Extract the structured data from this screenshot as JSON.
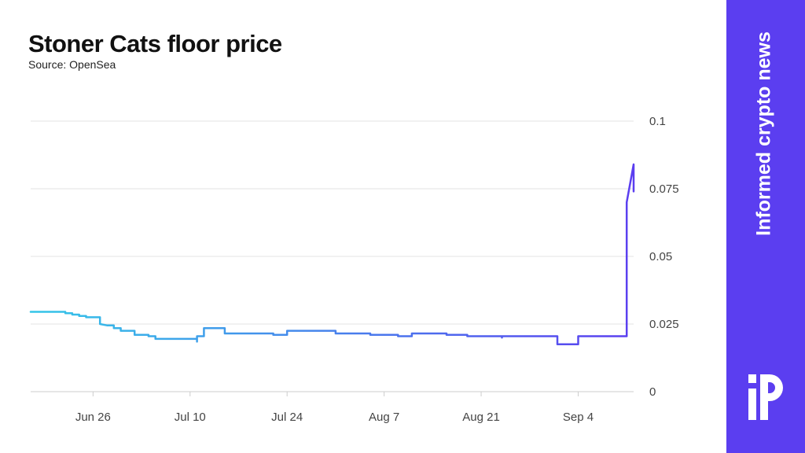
{
  "colors": {
    "brand": "#5b3ef0",
    "line_start": "#34c6e8",
    "line_end": "#5b3ef0",
    "grid": "#e3e3e3",
    "axis": "#cccccc",
    "tick_text": "#444444"
  },
  "brand": {
    "tagline": "Informed crypto news",
    "logo_icon": "ip-logo-icon"
  },
  "chart_data": {
    "type": "line",
    "title": "Stoner Cats floor price",
    "subtitle": "Source: OpenSea",
    "xlabel": "",
    "ylabel": "",
    "x_range": [
      "2023-06-17",
      "2023-09-12"
    ],
    "ylim": [
      0,
      0.1
    ],
    "y_ticks": [
      0,
      0.025,
      0.05,
      0.075,
      0.1
    ],
    "y_tick_labels": [
      "0",
      "0.025",
      "0.05",
      "0.075",
      "0.1"
    ],
    "x_ticks": [
      "2023-06-26",
      "2023-07-10",
      "2023-07-24",
      "2023-08-07",
      "2023-08-21",
      "2023-09-04"
    ],
    "x_tick_labels": [
      "Jun 26",
      "Jul 10",
      "Jul 24",
      "Aug 7",
      "Aug 21",
      "Sep 4"
    ],
    "y_axis_position": "right",
    "grid": "horizontal",
    "legend": "none",
    "series": [
      {
        "points": [
          [
            "2023-06-17",
            0.0295
          ],
          [
            "2023-06-22",
            0.0295
          ],
          [
            "2023-06-22",
            0.029
          ],
          [
            "2023-06-23",
            0.029
          ],
          [
            "2023-06-23",
            0.0285
          ],
          [
            "2023-06-24",
            0.0285
          ],
          [
            "2023-06-24",
            0.028
          ],
          [
            "2023-06-25",
            0.028
          ],
          [
            "2023-06-25",
            0.0275
          ],
          [
            "2023-06-27",
            0.0275
          ],
          [
            "2023-06-27",
            0.0265
          ],
          [
            "2023-06-27",
            0.025
          ],
          [
            "2023-06-28",
            0.0245
          ],
          [
            "2023-06-29",
            0.0245
          ],
          [
            "2023-06-29",
            0.0235
          ],
          [
            "2023-06-30",
            0.0235
          ],
          [
            "2023-06-30",
            0.0225
          ],
          [
            "2023-07-02",
            0.0225
          ],
          [
            "2023-07-02",
            0.021
          ],
          [
            "2023-07-04",
            0.021
          ],
          [
            "2023-07-04",
            0.0205
          ],
          [
            "2023-07-05",
            0.0205
          ],
          [
            "2023-07-05",
            0.0195
          ],
          [
            "2023-07-11",
            0.0195
          ],
          [
            "2023-07-11",
            0.0185
          ],
          [
            "2023-07-11",
            0.0205
          ],
          [
            "2023-07-12",
            0.0205
          ],
          [
            "2023-07-12",
            0.0235
          ],
          [
            "2023-07-15",
            0.0235
          ],
          [
            "2023-07-15",
            0.0215
          ],
          [
            "2023-07-22",
            0.0215
          ],
          [
            "2023-07-22",
            0.021
          ],
          [
            "2023-07-24",
            0.021
          ],
          [
            "2023-07-24",
            0.0225
          ],
          [
            "2023-07-31",
            0.0225
          ],
          [
            "2023-07-31",
            0.0215
          ],
          [
            "2023-08-05",
            0.0215
          ],
          [
            "2023-08-05",
            0.021
          ],
          [
            "2023-08-09",
            0.021
          ],
          [
            "2023-08-09",
            0.0205
          ],
          [
            "2023-08-11",
            0.0205
          ],
          [
            "2023-08-11",
            0.0215
          ],
          [
            "2023-08-16",
            0.0215
          ],
          [
            "2023-08-16",
            0.021
          ],
          [
            "2023-08-19",
            0.021
          ],
          [
            "2023-08-19",
            0.0205
          ],
          [
            "2023-08-24",
            0.0205
          ],
          [
            "2023-08-24",
            0.02
          ],
          [
            "2023-08-24",
            0.0205
          ],
          [
            "2023-09-01",
            0.0205
          ],
          [
            "2023-09-01",
            0.0175
          ],
          [
            "2023-09-04",
            0.0175
          ],
          [
            "2023-09-04",
            0.0205
          ],
          [
            "2023-09-11",
            0.0205
          ],
          [
            "2023-09-11",
            0.0515
          ],
          [
            "2023-09-11",
            0.0475
          ],
          [
            "2023-09-11",
            0.07
          ],
          [
            "2023-09-12",
            0.084
          ],
          [
            "2023-09-12",
            0.074
          ]
        ]
      }
    ]
  }
}
